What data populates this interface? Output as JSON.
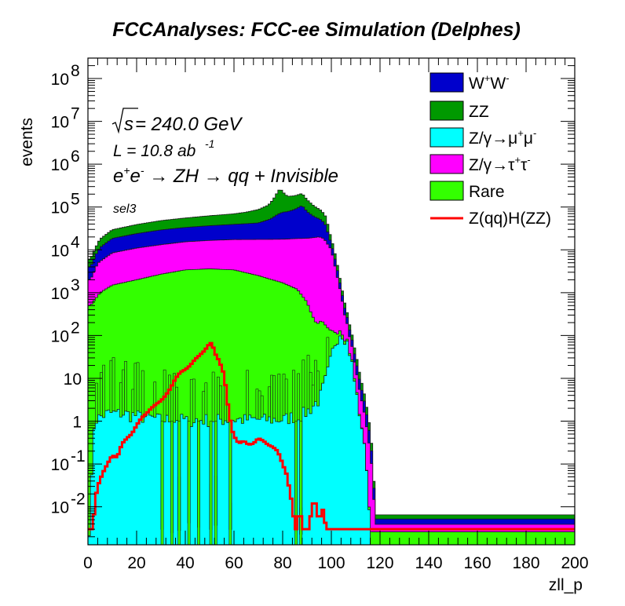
{
  "chart_data": {
    "type": "histogram",
    "title": "FCCAnalyses: FCC-ee Simulation (Delphes)",
    "xlabel": "zll_p",
    "ylabel": "events",
    "xlim": [
      0,
      200
    ],
    "ylim": [
      0.0013,
      300000000
    ],
    "yscale": "log",
    "bin_width": 1,
    "x_ticks": [
      0,
      20,
      40,
      60,
      80,
      100,
      120,
      140,
      160,
      180,
      200
    ],
    "x_tick_labels": [
      "0",
      "20",
      "40",
      "60",
      "80",
      "100",
      "120",
      "140",
      "160",
      "180",
      "200"
    ],
    "y_ticks": [
      0.01,
      0.1,
      1,
      10,
      100,
      1000,
      10000,
      100000,
      1000000,
      10000000,
      100000000
    ],
    "y_tick_labels": [
      {
        "base": "10",
        "exp": "-2"
      },
      {
        "base": "10",
        "exp": "-1"
      },
      {
        "base": "1",
        "exp": ""
      },
      {
        "base": "10",
        "exp": ""
      },
      {
        "base": "10",
        "exp": "2"
      },
      {
        "base": "10",
        "exp": "3"
      },
      {
        "base": "10",
        "exp": "4"
      },
      {
        "base": "10",
        "exp": "5"
      },
      {
        "base": "10",
        "exp": "6"
      },
      {
        "base": "10",
        "exp": "7"
      },
      {
        "base": "10",
        "exp": "8"
      }
    ],
    "stacked_series_bottom_to_top": [
      {
        "name": "Z/γ→μ⁺μ⁻",
        "color": "#00ffff",
        "profile": [
          [
            1,
            0.003
          ],
          [
            2,
            0.5
          ],
          [
            3,
            1.0
          ],
          [
            8,
            1.4
          ],
          [
            14,
            1.4
          ],
          [
            30,
            1.0
          ],
          [
            60,
            1.0
          ],
          [
            80,
            1.0
          ],
          [
            90,
            1.5
          ],
          [
            95,
            3
          ],
          [
            98,
            10
          ],
          [
            100,
            30
          ],
          [
            102,
            80
          ],
          [
            104,
            120
          ],
          [
            106,
            80
          ],
          [
            108,
            30
          ],
          [
            110,
            5
          ],
          [
            112,
            1
          ],
          [
            114,
            0.2
          ],
          [
            116,
            0.003
          ]
        ],
        "sparse_dips": [
          [
            30,
            0.003
          ],
          [
            34,
            0.003
          ],
          [
            37,
            0.003
          ],
          [
            41,
            0.003
          ],
          [
            45,
            0.003
          ],
          [
            50,
            0.003
          ],
          [
            52,
            0.003
          ],
          [
            58,
            0.003
          ],
          [
            85,
            0.003
          ],
          [
            87,
            0.003
          ]
        ]
      },
      {
        "name": "Rare",
        "color": "#33ff00",
        "profile": [
          [
            1,
            500
          ],
          [
            5,
            1000
          ],
          [
            10,
            1500
          ],
          [
            20,
            2000
          ],
          [
            30,
            2700
          ],
          [
            40,
            3400
          ],
          [
            50,
            3600
          ],
          [
            60,
            3400
          ],
          [
            70,
            2500
          ],
          [
            80,
            1700
          ],
          [
            86,
            1200
          ],
          [
            90,
            600
          ],
          [
            92,
            300
          ],
          [
            94,
            180
          ],
          [
            96,
            220
          ],
          [
            98,
            150
          ],
          [
            100,
            90
          ],
          [
            103,
            40
          ],
          [
            106,
            10
          ],
          [
            110,
            1
          ],
          [
            114,
            0.003
          ]
        ],
        "noise_bins": [
          1,
          2,
          3,
          4,
          5,
          6,
          7,
          8,
          9,
          10,
          11,
          12,
          13,
          14,
          15,
          16,
          17,
          18,
          19,
          20,
          21,
          22,
          23,
          24,
          25,
          26,
          27,
          28,
          29,
          30,
          31,
          32,
          33,
          34,
          35,
          36,
          37,
          38,
          39,
          40,
          41,
          42,
          43,
          44,
          45,
          46,
          47,
          48,
          49,
          50,
          51,
          52,
          53,
          54,
          55,
          56,
          57,
          58,
          59,
          60,
          61,
          62,
          63,
          64,
          65,
          66,
          67,
          68,
          69,
          70,
          71,
          72,
          73,
          74,
          75,
          76,
          77,
          78,
          79,
          80,
          81,
          82,
          83,
          84,
          85,
          86,
          87,
          88,
          89,
          90,
          91,
          92,
          93,
          94,
          95,
          96,
          97,
          98,
          99,
          100,
          101,
          102,
          103,
          104,
          105,
          106,
          107,
          108,
          109,
          110,
          111,
          112,
          113,
          114,
          115,
          116,
          117,
          118,
          119,
          120
        ]
      },
      {
        "name": "Z/γ→τ⁺τ⁻",
        "color": "#ff00ff",
        "profile": [
          [
            1,
            1500
          ],
          [
            4,
            4000
          ],
          [
            10,
            7000
          ],
          [
            20,
            9000
          ],
          [
            30,
            10500
          ],
          [
            40,
            12000
          ],
          [
            50,
            13000
          ],
          [
            60,
            14000
          ],
          [
            70,
            15000
          ],
          [
            80,
            16000
          ],
          [
            90,
            18000
          ],
          [
            95,
            20000
          ],
          [
            97,
            18000
          ],
          [
            100,
            10000
          ],
          [
            102,
            3000
          ],
          [
            104,
            800
          ],
          [
            106,
            150
          ],
          [
            108,
            40
          ],
          [
            110,
            10
          ],
          [
            112,
            3
          ],
          [
            114,
            1
          ],
          [
            116,
            0.2
          ],
          [
            117,
            0.05
          ],
          [
            118,
            0.003
          ]
        ]
      },
      {
        "name": "W⁺W⁻",
        "color": "#0000cc",
        "profile": [
          [
            1,
            2000
          ],
          [
            5,
            6000
          ],
          [
            10,
            10000
          ],
          [
            20,
            13000
          ],
          [
            30,
            16000
          ],
          [
            40,
            18000
          ],
          [
            50,
            20000
          ],
          [
            60,
            22000
          ],
          [
            70,
            25000
          ],
          [
            75,
            35000
          ],
          [
            78,
            50000
          ],
          [
            80,
            58000
          ],
          [
            82,
            60000
          ],
          [
            85,
            70000
          ],
          [
            88,
            90000
          ],
          [
            90,
            60000
          ],
          [
            93,
            40000
          ],
          [
            96,
            30000
          ],
          [
            98,
            20000
          ],
          [
            99,
            8000
          ],
          [
            100,
            4000
          ],
          [
            102,
            1500
          ],
          [
            104,
            300
          ],
          [
            106,
            100
          ],
          [
            108,
            30
          ],
          [
            110,
            10
          ],
          [
            112,
            3
          ],
          [
            114,
            1
          ],
          [
            116,
            0.2
          ],
          [
            117,
            0.05
          ],
          [
            118,
            0.003
          ]
        ]
      },
      {
        "name": "ZZ",
        "color": "#009900",
        "profile": [
          [
            1,
            2100
          ],
          [
            5,
            6500
          ],
          [
            10,
            11000
          ],
          [
            20,
            15000
          ],
          [
            30,
            19000
          ],
          [
            40,
            22000
          ],
          [
            50,
            26000
          ],
          [
            60,
            30000
          ],
          [
            65,
            35000
          ],
          [
            70,
            45000
          ],
          [
            74,
            60000
          ],
          [
            76,
            90000
          ],
          [
            78,
            160000
          ],
          [
            79,
            200000
          ],
          [
            80,
            150000
          ],
          [
            82,
            100000
          ],
          [
            85,
            95000
          ],
          [
            88,
            100000
          ],
          [
            90,
            70000
          ],
          [
            93,
            45000
          ],
          [
            96,
            32000
          ],
          [
            98,
            21000
          ],
          [
            99,
            8500
          ],
          [
            100,
            4200
          ],
          [
            102,
            1600
          ],
          [
            104,
            320
          ],
          [
            106,
            105
          ],
          [
            108,
            32
          ],
          [
            110,
            11
          ],
          [
            112,
            3.2
          ],
          [
            114,
            1.05
          ],
          [
            116,
            0.21
          ],
          [
            117,
            0.05
          ],
          [
            118,
            0.003
          ]
        ]
      }
    ],
    "line_series": [
      {
        "name": "Z(qq)H(ZZ)",
        "color": "#ff0000",
        "profile": [
          [
            1,
            0.003
          ],
          [
            2,
            0.003
          ],
          [
            3,
            0.015
          ],
          [
            4,
            0.03
          ],
          [
            6,
            0.06
          ],
          [
            8,
            0.1
          ],
          [
            10,
            0.16
          ],
          [
            12,
            0.14
          ],
          [
            14,
            0.3
          ],
          [
            16,
            0.4
          ],
          [
            18,
            0.5
          ],
          [
            20,
            0.8
          ],
          [
            22,
            1.2
          ],
          [
            24,
            1.5
          ],
          [
            26,
            2
          ],
          [
            28,
            2.5
          ],
          [
            30,
            3
          ],
          [
            32,
            4
          ],
          [
            34,
            6
          ],
          [
            36,
            10
          ],
          [
            38,
            14
          ],
          [
            40,
            16
          ],
          [
            42,
            20
          ],
          [
            44,
            28
          ],
          [
            46,
            35
          ],
          [
            48,
            45
          ],
          [
            50,
            65
          ],
          [
            51,
            68
          ],
          [
            52,
            40
          ],
          [
            54,
            25
          ],
          [
            56,
            12
          ],
          [
            57,
            4
          ],
          [
            58,
            1.5
          ],
          [
            59,
            0.7
          ],
          [
            60,
            0.45
          ],
          [
            62,
            0.3
          ],
          [
            64,
            0.35
          ],
          [
            66,
            0.28
          ],
          [
            68,
            0.3
          ],
          [
            70,
            0.4
          ],
          [
            72,
            0.35
          ],
          [
            74,
            0.28
          ],
          [
            76,
            0.25
          ],
          [
            78,
            0.2
          ],
          [
            80,
            0.1
          ],
          [
            82,
            0.05
          ],
          [
            83,
            0.02
          ],
          [
            84,
            0.012
          ],
          [
            85,
            0.003
          ],
          [
            86,
            0.003
          ],
          [
            87,
            0.012
          ],
          [
            88,
            0.003
          ],
          [
            89,
            0.003
          ],
          [
            90,
            0.003
          ],
          [
            91,
            0.003
          ],
          [
            92,
            0.012
          ],
          [
            94,
            0.012
          ],
          [
            95,
            0.003
          ],
          [
            96,
            0.012
          ],
          [
            98,
            0.003
          ],
          [
            120,
            0.003
          ],
          [
            200,
            0.003
          ]
        ]
      }
    ]
  },
  "title": "FCCAnalyses: FCC-ee Simulation (Delphes)",
  "xlabel": "zll_p",
  "ylabel": "events",
  "annotations": {
    "sqrt_s": "s",
    "energy": " = 240.0 GeV",
    "lumi_prefix": "L = 10.8 ab",
    "lumi_exp": "-1",
    "process_e1": "e",
    "process_sup1": "+",
    "process_e2": "e",
    "process_sup2": "-",
    "process_rest1": " → ZH → qq + Invisible",
    "selection": "sel3"
  },
  "legend": {
    "placement": "top-right",
    "entries": [
      {
        "label_base": "W",
        "label_sup1": "+",
        "label_mid": "W",
        "label_sup2": "-",
        "color": "#0000cc"
      },
      {
        "label": "ZZ",
        "color": "#009900"
      },
      {
        "label_base": "Z/γ→μ",
        "label_sup1": "+",
        "label_mid": "μ",
        "label_sup2": "-",
        "color": "#00ffff"
      },
      {
        "label_base": "Z/γ→τ",
        "label_sup1": "+",
        "label_mid": "τ",
        "label_sup2": "-",
        "color": "#ff00ff"
      },
      {
        "label": "Rare",
        "color": "#33ff00"
      },
      {
        "label": "Z(qq)H(ZZ)",
        "color": "#ff0000",
        "style": "line"
      }
    ]
  }
}
